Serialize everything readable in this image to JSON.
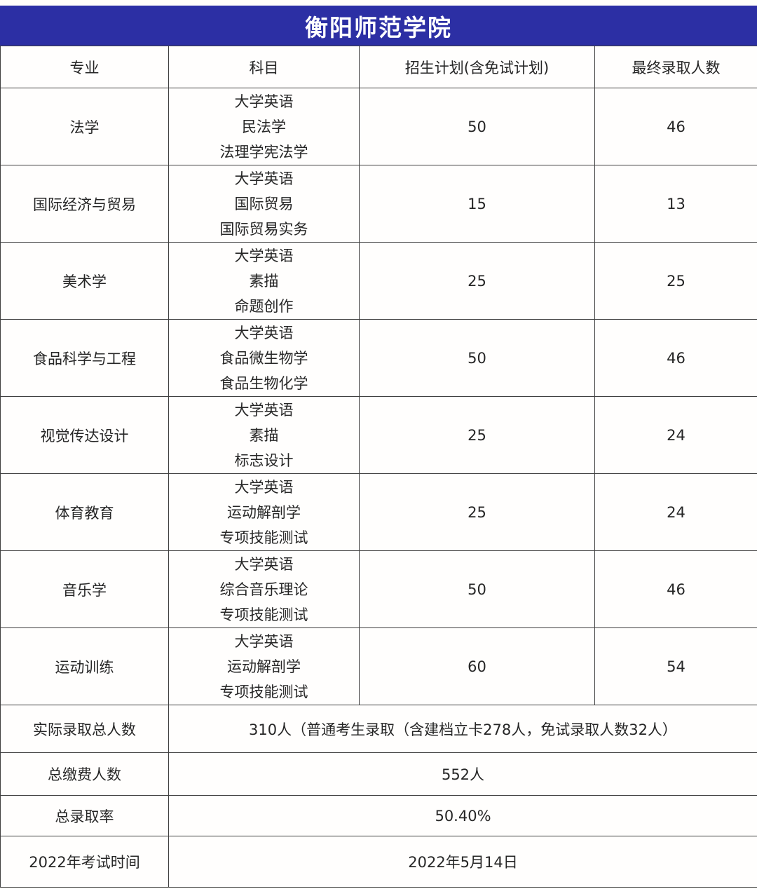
{
  "table": {
    "title": "衡阳师范学院",
    "columns": [
      "专业",
      "科目",
      "招生计划(含免试计划)",
      "最终录取人数"
    ],
    "rows": [
      {
        "major": "法学",
        "subjects": [
          "大学英语",
          "民法学",
          "法理学宪法学"
        ],
        "plan": "50",
        "admitted": "46"
      },
      {
        "major": "国际经济与贸易",
        "subjects": [
          "大学英语",
          "国际贸易",
          "国际贸易实务"
        ],
        "plan": "15",
        "admitted": "13"
      },
      {
        "major": "美术学",
        "subjects": [
          "大学英语",
          "素描",
          "命题创作"
        ],
        "plan": "25",
        "admitted": "25"
      },
      {
        "major": "食品科学与工程",
        "subjects": [
          "大学英语",
          "食品微生物学",
          "食品生物化学"
        ],
        "plan": "50",
        "admitted": "46"
      },
      {
        "major": "视觉传达设计",
        "subjects": [
          "大学英语",
          "素描",
          "标志设计"
        ],
        "plan": "25",
        "admitted": "24"
      },
      {
        "major": "体育教育",
        "subjects": [
          "大学英语",
          "运动解剖学",
          "专项技能测试"
        ],
        "plan": "25",
        "admitted": "24"
      },
      {
        "major": "音乐学",
        "subjects": [
          "大学英语",
          "综合音乐理论",
          "专项技能测试"
        ],
        "plan": "50",
        "admitted": "46"
      },
      {
        "major": "运动训练",
        "subjects": [
          "大学英语",
          "运动解剖学",
          "专项技能测试"
        ],
        "plan": "60",
        "admitted": "54"
      }
    ],
    "summary_rows": [
      {
        "label": "实际录取总人数",
        "value": "310人（普通考生录取（含建档立卡278人，免试录取人数32人）"
      },
      {
        "label": "总缴费人数",
        "value": "552人"
      },
      {
        "label": "总录取率",
        "value": "50.40%"
      },
      {
        "label": "2022年考试时间",
        "value": "2022年5月14日"
      }
    ],
    "colors": {
      "header_bg": "#2c2fa4",
      "header_text": "#ffffff",
      "border": "#3f3f3f",
      "text": "#262626"
    }
  }
}
